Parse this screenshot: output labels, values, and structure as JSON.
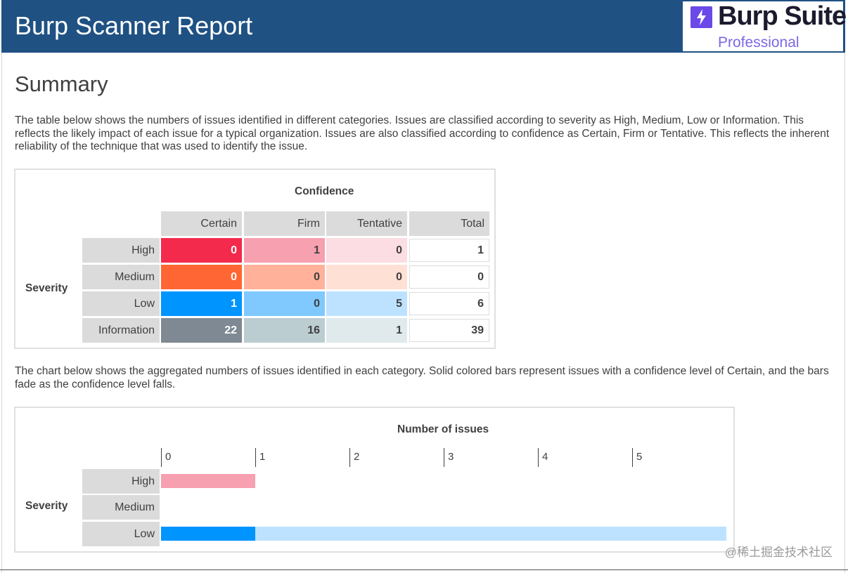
{
  "header": {
    "title": "Burp Scanner Report",
    "logo_name": "Burp Suite",
    "logo_edition": "Professional"
  },
  "summary": {
    "title": "Summary",
    "intro": "The table below shows the numbers of issues identified in different categories. Issues are classified according to severity as High, Medium, Low or Information. This reflects the likely impact of each issue for a typical organization. Issues are also classified according to confidence as Certain, Firm or Tentative. This reflects the inherent reliability of the technique that was used to identify the issue.",
    "chart_intro": "The chart below shows the aggregated numbers of issues identified in each category. Solid colored bars represent issues with a confidence level of Certain, and the bars fade as the confidence level falls."
  },
  "table": {
    "confidence_label": "Confidence",
    "severity_label": "Severity",
    "columns": [
      "Certain",
      "Firm",
      "Tentative",
      "Total"
    ],
    "rows": [
      {
        "label": "High",
        "values": [
          "0",
          "1",
          "0",
          "1"
        ]
      },
      {
        "label": "Medium",
        "values": [
          "0",
          "0",
          "0",
          "0"
        ]
      },
      {
        "label": "Low",
        "values": [
          "1",
          "0",
          "5",
          "6"
        ]
      },
      {
        "label": "Information",
        "values": [
          "22",
          "16",
          "1",
          "39"
        ]
      }
    ],
    "colors": {
      "High": [
        "#f32a4c",
        "#f7a0b0",
        "#fcdde3"
      ],
      "Medium": [
        "#ff6633",
        "#ffb299",
        "#ffe0d5"
      ],
      "Low": [
        "#0094ff",
        "#7fc9ff",
        "#bde2ff"
      ],
      "Information": [
        "#7e8993",
        "#bccdd1",
        "#e0eaed"
      ]
    }
  },
  "chart_data": {
    "type": "bar",
    "title": "Number of issues",
    "ylabel": "Severity",
    "categories": [
      "High",
      "Medium",
      "Low"
    ],
    "xticks": [
      "0",
      "1",
      "2",
      "3",
      "4",
      "5"
    ],
    "xlim": [
      0,
      6
    ],
    "series": [
      {
        "name": "Certain",
        "values": [
          0,
          0,
          1
        ]
      },
      {
        "name": "Firm",
        "values": [
          1,
          0,
          0
        ]
      },
      {
        "name": "Tentative",
        "values": [
          0,
          0,
          5
        ]
      }
    ],
    "colors": {
      "High": [
        "#f32a4c",
        "#f7a0b0",
        "#fcdde3"
      ],
      "Medium": [
        "#ff6633",
        "#ffb299",
        "#ffe0d5"
      ],
      "Low": [
        "#0094ff",
        "#7fc9ff",
        "#bde2ff"
      ]
    }
  },
  "watermark": "@稀土掘金技术社区"
}
